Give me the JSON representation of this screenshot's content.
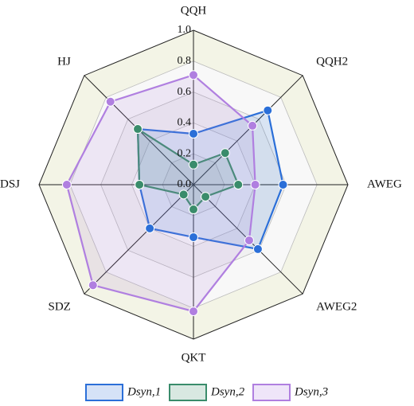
{
  "chart_data": {
    "type": "radar",
    "categories": [
      "QQH",
      "QQH2",
      "AWEG",
      "AWEG2",
      "QKT",
      "SDZ",
      "DSJ",
      "HJ"
    ],
    "rlim": [
      0,
      1
    ],
    "rticks": [
      {
        "value": 0,
        "label": "0.0"
      },
      0.2,
      0.4,
      0.6,
      0.8,
      {
        "value": 1,
        "label": "1.0"
      }
    ],
    "grid": true,
    "legend": "bottom",
    "series": [
      {
        "name": "Dsyn,1",
        "color": "#2b6fd8",
        "values": [
          0.33,
          0.68,
          0.58,
          0.59,
          0.34,
          0.4,
          0.35,
          0.51
        ]
      },
      {
        "name": "Dsyn,2",
        "color": "#3a8c6b",
        "values": [
          0.13,
          0.29,
          0.29,
          0.11,
          0.16,
          0.09,
          0.35,
          0.51
        ]
      },
      {
        "name": "Dsyn,3",
        "color": "#b07fe0",
        "values": [
          0.71,
          0.54,
          0.4,
          0.51,
          0.82,
          0.92,
          0.82,
          0.76
        ]
      }
    ]
  }
}
